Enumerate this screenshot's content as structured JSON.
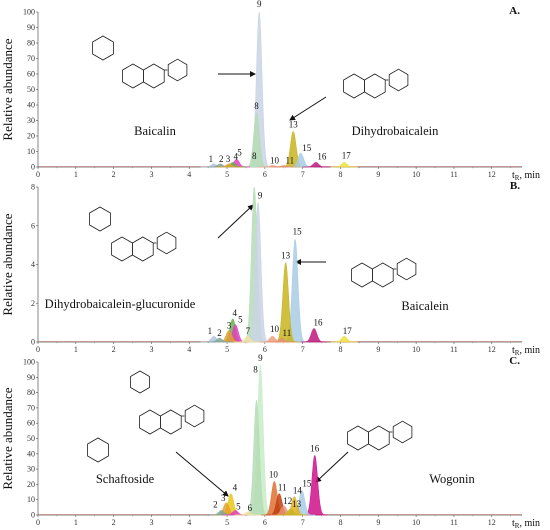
{
  "chart_data": [
    {
      "type": "area",
      "panel_label": "A.",
      "ylabel": "Relative abundance",
      "xlabel": "t_R, min",
      "xlabel_main": "t",
      "xlabel_sub": "R",
      "xlabel_tail": ", min",
      "xlim": [
        0,
        12.8
      ],
      "ylim": [
        0,
        100
      ],
      "x_ticks": [
        "0",
        "1",
        "2",
        "3",
        "4",
        "5",
        "6",
        "7",
        "8",
        "9",
        "10",
        "11",
        "12"
      ],
      "y_ticks": [
        "0",
        "10",
        "20",
        "30",
        "40",
        "50",
        "60",
        "70",
        "80",
        "90",
        "100"
      ],
      "compounds": [
        "Baicalin",
        "Dihydrobaicalein"
      ],
      "peaks": [
        {
          "label": "1",
          "rt": 4.65,
          "height": 2,
          "color": "#b3c4de"
        },
        {
          "label": "2",
          "rt": 4.82,
          "height": 2,
          "color": "#7fa79a"
        },
        {
          "label": "3",
          "rt": 5.05,
          "height": 2,
          "color": "#e0a030"
        },
        {
          "label": "4",
          "rt": 5.15,
          "height": 3,
          "color": "#6ab04c"
        },
        {
          "label": "5",
          "rt": 5.25,
          "height": 5,
          "color": "#e040c0"
        },
        {
          "label": "8",
          "rt": 5.78,
          "height": 35,
          "color": "#b5dcb5"
        },
        {
          "label": "9",
          "rt": 5.85,
          "height": 100,
          "color": "#c8d4e4"
        },
        {
          "label": "10",
          "rt": 6.2,
          "height": 1,
          "color": "#f0a080"
        },
        {
          "label": "11",
          "rt": 6.5,
          "height": 1,
          "color": "#e89070"
        },
        {
          "label": "13",
          "rt": 6.75,
          "height": 23,
          "color": "#c8b420"
        },
        {
          "label": "15",
          "rt": 6.95,
          "height": 9,
          "color": "#a8cce4"
        },
        {
          "label": "16",
          "rt": 7.35,
          "height": 3,
          "color": "#c01880"
        },
        {
          "label": "17",
          "rt": 8.1,
          "height": 3,
          "color": "#f0e040"
        }
      ]
    },
    {
      "type": "area",
      "panel_label": "B.",
      "ylabel": "Relative abundance",
      "xlabel": "t_R, min",
      "xlabel_main": "t",
      "xlabel_sub": "R",
      "xlabel_tail": ", min",
      "xlim": [
        0,
        12.8
      ],
      "ylim": [
        0,
        8
      ],
      "x_ticks": [
        "0",
        "1",
        "2",
        "3",
        "4",
        "5",
        "6",
        "7",
        "8",
        "9",
        "10",
        "11",
        "12"
      ],
      "y_ticks": [
        "0",
        "2",
        "4",
        "6",
        "8"
      ],
      "compounds": [
        "Dihydrobaicalein-glucuronide",
        "Baicalein"
      ],
      "peaks": [
        {
          "label": "1",
          "rt": 4.65,
          "height": 0.3,
          "color": "#b3c4de"
        },
        {
          "label": "2",
          "rt": 4.8,
          "height": 0.2,
          "color": "#7fa79a"
        },
        {
          "label": "3",
          "rt": 5.05,
          "height": 0.6,
          "color": "#e0a030"
        },
        {
          "label": "4",
          "rt": 5.15,
          "height": 1.2,
          "color": "#6ab04c"
        },
        {
          "label": "5",
          "rt": 5.22,
          "height": 0.9,
          "color": "#e040c0"
        },
        {
          "label": "7",
          "rt": 5.55,
          "height": 0.3,
          "color": "#f0e0a0"
        },
        {
          "label": "8",
          "rt": 5.72,
          "height": 8.0,
          "color": "#b5dcb5"
        },
        {
          "label": "9",
          "rt": 5.82,
          "height": 7.2,
          "color": "#c8d4e4"
        },
        {
          "label": "10",
          "rt": 6.2,
          "height": 0.3,
          "color": "#f0a080"
        },
        {
          "label": "11",
          "rt": 6.45,
          "height": 0.2,
          "color": "#e89070"
        },
        {
          "label": "13",
          "rt": 6.55,
          "height": 4.1,
          "color": "#c8b420"
        },
        {
          "label": "15",
          "rt": 6.8,
          "height": 5.3,
          "color": "#a8cce4"
        },
        {
          "label": "16",
          "rt": 7.3,
          "height": 0.7,
          "color": "#c01880"
        },
        {
          "label": "17",
          "rt": 8.1,
          "height": 0.3,
          "color": "#f0e040"
        }
      ]
    },
    {
      "type": "area",
      "panel_label": "C.",
      "ylabel": "Relative abundance",
      "xlabel": "t_R, min",
      "xlabel_main": "t",
      "xlabel_sub": "R",
      "xlabel_tail": ", min",
      "xlim": [
        0,
        12.8
      ],
      "ylim": [
        0,
        100
      ],
      "x_ticks": [
        "0",
        "1",
        "2",
        "3",
        "4",
        "5",
        "6",
        "7",
        "8",
        "9",
        "10",
        "11",
        "12"
      ],
      "y_ticks": [
        "0",
        "10",
        "20",
        "30",
        "40",
        "50",
        "60",
        "70",
        "80",
        "90",
        "100"
      ],
      "compounds": [
        "Schaftoside",
        "Wogonin"
      ],
      "peaks": [
        {
          "label": "2",
          "rt": 4.85,
          "height": 3,
          "color": "#7fa79a"
        },
        {
          "label": "3",
          "rt": 4.98,
          "height": 8,
          "color": "#e0a030"
        },
        {
          "label": "4",
          "rt": 5.1,
          "height": 14,
          "color": "#e8c818"
        },
        {
          "label": "5",
          "rt": 5.22,
          "height": 3,
          "color": "#e040c0"
        },
        {
          "label": "6",
          "rt": 5.55,
          "height": 2,
          "color": "#f0e0a0"
        },
        {
          "label": "8",
          "rt": 5.78,
          "height": 75,
          "color": "#b5dcb5"
        },
        {
          "label": "9",
          "rt": 5.88,
          "height": 98,
          "color": "#c8ecc8"
        },
        {
          "label": "10",
          "rt": 6.25,
          "height": 22,
          "color": "#e07030"
        },
        {
          "label": "11",
          "rt": 6.38,
          "height": 14,
          "color": "#c04010"
        },
        {
          "label": "12",
          "rt": 6.5,
          "height": 6,
          "color": "#e89070"
        },
        {
          "label": "13",
          "rt": 6.68,
          "height": 4,
          "color": "#c8b420"
        },
        {
          "label": "14",
          "rt": 6.78,
          "height": 12,
          "color": "#e0b020"
        },
        {
          "label": "15",
          "rt": 6.98,
          "height": 16,
          "color": "#a8cce4"
        },
        {
          "label": "16",
          "rt": 7.32,
          "height": 39,
          "color": "#d0108a"
        }
      ]
    }
  ]
}
